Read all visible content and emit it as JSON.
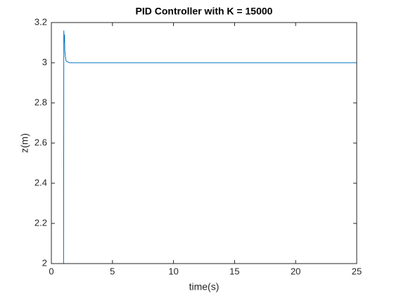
{
  "chart_data": {
    "type": "line",
    "title": "PID Controller with K = 15000",
    "xlabel": "time(s)",
    "ylabel": "z(m)",
    "x": [
      0,
      1,
      1.02,
      1.05,
      1.08,
      1.1,
      1.15,
      1.2,
      1.3,
      1.5,
      2,
      25
    ],
    "values": [
      2,
      2,
      3.16,
      3.1,
      3.14,
      3.06,
      3.03,
      3.01,
      3.005,
      3.0,
      3.0,
      3.0
    ],
    "color": "#0072bd",
    "xlim": [
      0,
      25
    ],
    "xticks": [
      0,
      5,
      10,
      15,
      20,
      25
    ],
    "ylim": [
      2,
      3.2
    ],
    "yticks": [
      2,
      2.2,
      2.4,
      2.6,
      2.8,
      3,
      3.2
    ],
    "grid": false
  }
}
